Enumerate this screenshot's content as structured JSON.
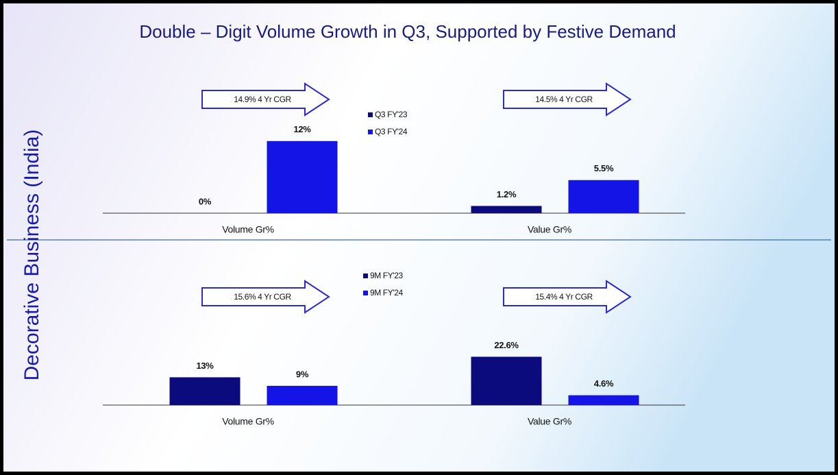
{
  "title": "Double – Digit Volume Growth in Q3, Supported by Festive Demand",
  "side_label": "Decorative Business (India)",
  "chart_data": [
    {
      "type": "bar",
      "categories": [
        "Volume Gr%",
        "Value Gr%"
      ],
      "series": [
        {
          "name": "Q3 FY'23",
          "color": "#0b0b7e",
          "values": [
            0,
            1.2
          ],
          "value_labels": [
            "0%",
            "1.2%"
          ]
        },
        {
          "name": "Q3 FY'24",
          "color": "#1414e6",
          "values": [
            12,
            5.5
          ],
          "value_labels": [
            "12%",
            "5.5%"
          ]
        }
      ],
      "ylim": [
        0,
        13
      ],
      "annotations": [
        "14.9% 4 Yr CGR",
        "14.5% 4 Yr CGR"
      ]
    },
    {
      "type": "bar",
      "categories": [
        "Volume Gr%",
        "Value Gr%"
      ],
      "series": [
        {
          "name": "9M FY'23",
          "color": "#0b0b7e",
          "values": [
            13,
            22.6
          ],
          "value_labels": [
            "13%",
            "22.6%"
          ]
        },
        {
          "name": "9M FY'24",
          "color": "#1414e6",
          "values": [
            9,
            4.6
          ],
          "value_labels": [
            "9%",
            "4.6%"
          ]
        }
      ],
      "ylim": [
        0,
        25
      ],
      "annotations": [
        "15.6% 4 Yr CGR",
        "15.4% 4 Yr CGR"
      ]
    }
  ]
}
